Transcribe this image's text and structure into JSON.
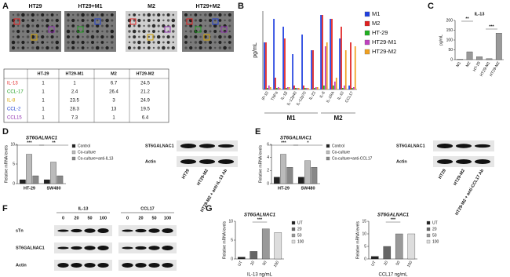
{
  "panels": [
    "A",
    "B",
    "C",
    "D",
    "E",
    "F",
    "G"
  ],
  "arrays": [
    "HT29",
    "HT29+M1",
    "M2",
    "HT29+M2"
  ],
  "table": {
    "header": [
      "HT-29",
      "HT29-M1",
      "M2",
      "HT29-M2"
    ],
    "rows": [
      {
        "label": "IL-13",
        "color": "#e02020",
        "cells": [
          1,
          1,
          6.7,
          24.5
        ]
      },
      {
        "label": "CCL-17",
        "color": "#20a020",
        "cells": [
          1,
          2.4,
          26.4,
          21.2
        ]
      },
      {
        "label": "IL-8",
        "color": "#d0a000",
        "cells": [
          1,
          23.5,
          3,
          24.9
        ]
      },
      {
        "label": "CCL-2",
        "color": "#2040d0",
        "cells": [
          1,
          28.3,
          13,
          19.5
        ]
      },
      {
        "label": "CCL15",
        "color": "#9030b0",
        "cells": [
          1,
          7.3,
          1,
          6.4
        ]
      }
    ]
  },
  "blots": [
    {
      "rows": [
        "ST6GALNAC1",
        "Actin"
      ],
      "lanes": [
        "HT29",
        "HT29-M2",
        "HT29-M2 + anti-IL-13 Ab"
      ]
    },
    {
      "rows": [
        "ST6GALNAC1",
        "Actin"
      ],
      "lanes": [
        "HT29",
        "HT29-M2",
        "HT29-M2 + anti-CCL17 Ab"
      ]
    },
    {
      "groups": [
        "IL-13",
        "CCL17"
      ],
      "lanes": [
        "0",
        "20",
        "50",
        "100"
      ],
      "rows": [
        "sTn",
        "ST6GALNAC1",
        "Actin"
      ]
    }
  ],
  "chart_data": [
    {
      "type": "bar",
      "y_label": "pg/mL",
      "legend": "right",
      "categories": [
        "IP-10",
        "TNFα",
        "IL-1β",
        "IL-12p40",
        "IL-12p70",
        "IL-23",
        "IL-6",
        "IL-1RA",
        "IL-10",
        "CCL17"
      ],
      "group_labels": [
        "M1",
        "M2"
      ],
      "series": [
        {
          "name": "M1",
          "color": "#2040e0",
          "values": [
            60,
            90,
            80,
            45,
            70,
            50,
            95,
            90,
            65,
            5
          ]
        },
        {
          "name": "M2",
          "color": "#e02020",
          "values": [
            60,
            15,
            65,
            5,
            5,
            50,
            95,
            90,
            80,
            60
          ]
        },
        {
          "name": "HT-29",
          "color": "#20b020",
          "values": [
            2,
            2,
            2,
            2,
            2,
            2,
            5,
            5,
            2,
            2
          ]
        },
        {
          "name": "HT29-M1",
          "color": "#c040c0",
          "values": [
            5,
            3,
            3,
            2,
            2,
            3,
            55,
            10,
            5,
            3
          ]
        },
        {
          "name": "HT29-M2",
          "color": "#f0a020",
          "values": [
            3,
            2,
            3,
            2,
            2,
            3,
            60,
            15,
            50,
            55
          ]
        }
      ],
      "ylim": [
        0,
        100
      ]
    },
    {
      "type": "bar",
      "title": "IL-13",
      "y_label": "pg/mL",
      "categories": [
        "M1",
        "M2",
        "HT-29",
        "HT29-M1",
        "HT29-M2"
      ],
      "values": [
        2,
        40,
        15,
        5,
        135
      ],
      "color": "#999999",
      "ylim": [
        0,
        200
      ],
      "yticks": [
        0,
        50,
        100,
        150,
        200
      ],
      "annotations": [
        "**",
        "***"
      ]
    },
    {
      "type": "bar",
      "title": "ST6GALNAC1",
      "y_label": "Relative mRNA levels",
      "legend": "right",
      "categories": [
        "HT-29",
        "SW480"
      ],
      "series": [
        {
          "name": "Control",
          "color": "#222222",
          "values": [
            1,
            1
          ]
        },
        {
          "name": "Co-culture",
          "color": "#bbbbbb",
          "values": [
            7.5,
            5.5
          ]
        },
        {
          "name": "Co-culture+anti-IL13",
          "color": "#888888",
          "values": [
            2,
            2
          ]
        }
      ],
      "ylim": [
        0,
        10
      ],
      "yticks": [
        0,
        5,
        10
      ],
      "annotations": [
        "***",
        "**"
      ]
    },
    {
      "type": "bar",
      "title": "ST6GALNAC1",
      "y_label": "Relative mRNA levels",
      "legend": "right",
      "categories": [
        "HT-29",
        "SW480"
      ],
      "series": [
        {
          "name": "Control",
          "color": "#222222",
          "values": [
            1,
            1
          ]
        },
        {
          "name": "Co-culture",
          "color": "#bbbbbb",
          "values": [
            4.5,
            3.5
          ]
        },
        {
          "name": "Co-culture+anti-CCL17",
          "color": "#888888",
          "values": [
            2.5,
            2.5
          ]
        }
      ],
      "ylim": [
        0,
        6
      ],
      "yticks": [
        0,
        2,
        4,
        6
      ],
      "annotations": [
        "***",
        "*"
      ]
    },
    {
      "type": "bar",
      "title": "ST6GALNAC1",
      "y_label": "Relative mRNA levels",
      "x_label": "IL-13 ng/mL",
      "legend": "right",
      "categories": [
        "UT",
        "20",
        "50",
        "100"
      ],
      "values": [
        0.5,
        2,
        8,
        7
      ],
      "colors": [
        "#222222",
        "#666666",
        "#999999",
        "#dddddd"
      ],
      "ylim": [
        0,
        10
      ],
      "yticks": [
        0,
        5,
        10
      ],
      "annotations": [
        "***"
      ]
    },
    {
      "type": "bar",
      "title": "ST6GALNAC1",
      "y_label": "Relative mRNA levels",
      "x_label": "CCL17 ng/mL",
      "legend": "right",
      "categories": [
        "UT",
        "20",
        "50",
        "100"
      ],
      "values": [
        1,
        5,
        10,
        10
      ],
      "colors": [
        "#222222",
        "#666666",
        "#999999",
        "#dddddd"
      ],
      "ylim": [
        0,
        15
      ],
      "yticks": [
        0,
        5,
        10,
        15
      ],
      "annotations": [
        "***"
      ]
    }
  ]
}
